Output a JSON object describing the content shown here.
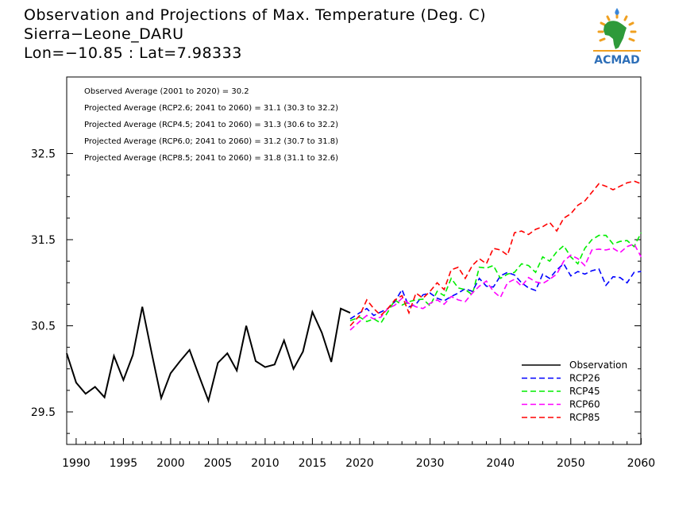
{
  "header": {
    "title": "Observation and Projections of Max. Temperature (Deg. C)",
    "station": "Sierra−Leone_DARU",
    "coords": "Lon=−10.85 : Lat=7.98333"
  },
  "logo": {
    "text": "ACMAD",
    "icon": "africa-map-sun-icon"
  },
  "chart_data": {
    "type": "line",
    "xlim": [
      1989,
      2060
    ],
    "ylim": [
      29.1,
      32.2
    ],
    "x_ticks": [
      1990,
      1995,
      2000,
      2005,
      2010,
      2015,
      2020,
      2030,
      2040,
      2050,
      2060
    ],
    "y_ticks": [
      29.5,
      30.5,
      31.5,
      32.5
    ],
    "y_tick_labels": [
      "29.5",
      "30.5",
      "31.5",
      "32.5"
    ],
    "grid": false,
    "legend_position": "bottom-right",
    "annotations": [
      "Observed Average (2001 to 2020) = 30.2",
      "Projected Average (RCP2.6; 2041 to 2060) = 31.1 (30.3 to 32.2)",
      "Projected Average (RCP4.5; 2041 to 2060) = 31.3 (30.6 to 32.2)",
      "Projected Average (RCP6.0; 2041 to 2060) = 31.2 (30.7 to 31.8)",
      "Projected Average (RCP8.5; 2041 to 2060) = 31.8 (31.1 to 32.6)"
    ],
    "series": [
      {
        "name": "Observation",
        "color": "#000000",
        "dash": "solid",
        "x": [
          1989,
          1990,
          1991,
          1992,
          1993,
          1994,
          1995,
          1996,
          1997,
          1998,
          1999,
          2000,
          2001,
          2002,
          2003,
          2004,
          2005,
          2006,
          2007,
          2008,
          2009,
          2010,
          2011,
          2012,
          2013,
          2014,
          2015,
          2016,
          2017,
          2018,
          2019
        ],
        "y": [
          30.18,
          29.84,
          29.71,
          29.79,
          29.67,
          30.15,
          29.87,
          30.16,
          30.72,
          30.18,
          29.66,
          29.95,
          30.09,
          30.22,
          29.92,
          29.63,
          30.07,
          30.18,
          29.98,
          30.5,
          30.09,
          30.02,
          30.05,
          30.33,
          30.0,
          30.2,
          30.66,
          30.42,
          30.08,
          30.7,
          30.65
        ]
      },
      {
        "name": "RCP26",
        "color": "#0000ff",
        "dash": "dashed",
        "x": [
          2019,
          2020,
          2021,
          2022,
          2023,
          2024,
          2025,
          2026,
          2027,
          2028,
          2029,
          2030,
          2031,
          2032,
          2033,
          2034,
          2035,
          2036,
          2037,
          2038,
          2039,
          2040,
          2041,
          2042,
          2043,
          2044,
          2045,
          2046,
          2047,
          2048,
          2049,
          2050,
          2051,
          2052,
          2053,
          2054,
          2055,
          2056,
          2057,
          2058,
          2059,
          2060
        ],
        "y": [
          30.58,
          30.65,
          30.7,
          30.62,
          30.66,
          30.7,
          30.78,
          30.92,
          30.72,
          30.75,
          30.86,
          30.88,
          30.82,
          30.79,
          30.84,
          30.88,
          30.93,
          30.9,
          31.05,
          30.96,
          30.95,
          31.08,
          31.12,
          31.09,
          31.0,
          30.94,
          30.91,
          31.1,
          31.05,
          31.15,
          31.22,
          31.08,
          31.13,
          31.1,
          31.14,
          31.16,
          30.97,
          31.07,
          31.06,
          31.0,
          31.12,
          31.13
        ]
      },
      {
        "name": "RCP45",
        "color": "#00ee00",
        "dash": "dashed",
        "x": [
          2019,
          2020,
          2021,
          2022,
          2023,
          2024,
          2025,
          2026,
          2027,
          2028,
          2029,
          2030,
          2031,
          2032,
          2033,
          2034,
          2035,
          2036,
          2037,
          2038,
          2039,
          2040,
          2041,
          2042,
          2043,
          2044,
          2045,
          2046,
          2047,
          2048,
          2049,
          2050,
          2051,
          2052,
          2053,
          2054,
          2055,
          2056,
          2057,
          2058,
          2059,
          2060
        ],
        "y": [
          30.56,
          30.6,
          30.55,
          30.58,
          30.53,
          30.66,
          30.8,
          30.74,
          30.78,
          30.8,
          30.81,
          30.73,
          30.9,
          30.85,
          31.05,
          30.94,
          30.92,
          30.86,
          31.18,
          31.17,
          31.2,
          31.05,
          31.1,
          31.12,
          31.22,
          31.2,
          31.12,
          31.3,
          31.25,
          31.36,
          31.43,
          31.3,
          31.22,
          31.4,
          31.5,
          31.55,
          31.55,
          31.45,
          31.48,
          31.49,
          31.42,
          31.58
        ]
      },
      {
        "name": "RCP60",
        "color": "#ff00ff",
        "dash": "dashed",
        "x": [
          2019,
          2020,
          2021,
          2022,
          2023,
          2024,
          2025,
          2026,
          2027,
          2028,
          2029,
          2030,
          2031,
          2032,
          2033,
          2034,
          2035,
          2036,
          2037,
          2038,
          2039,
          2040,
          2041,
          2042,
          2043,
          2044,
          2045,
          2046,
          2047,
          2048,
          2049,
          2050,
          2051,
          2052,
          2053,
          2054,
          2055,
          2056,
          2057,
          2058,
          2059,
          2060
        ],
        "y": [
          30.45,
          30.55,
          30.62,
          30.58,
          30.6,
          30.7,
          30.74,
          30.82,
          30.76,
          30.72,
          30.7,
          30.76,
          30.8,
          30.75,
          30.84,
          30.8,
          30.78,
          30.88,
          30.96,
          31.02,
          30.9,
          30.83,
          31.0,
          31.04,
          30.96,
          31.06,
          31.01,
          30.99,
          31.04,
          31.1,
          31.25,
          31.32,
          31.28,
          31.2,
          31.38,
          31.39,
          31.38,
          31.4,
          31.35,
          31.42,
          31.45,
          31.3
        ]
      },
      {
        "name": "RCP85",
        "color": "#ff0000",
        "dash": "dashed",
        "x": [
          2019,
          2020,
          2021,
          2022,
          2023,
          2024,
          2025,
          2026,
          2027,
          2028,
          2029,
          2030,
          2031,
          2032,
          2033,
          2034,
          2035,
          2036,
          2037,
          2038,
          2039,
          2040,
          2041,
          2042,
          2043,
          2044,
          2045,
          2046,
          2047,
          2048,
          2049,
          2050,
          2051,
          2052,
          2053,
          2054,
          2055,
          2056,
          2057,
          2058,
          2059,
          2060
        ],
        "y": [
          30.5,
          30.62,
          30.8,
          30.7,
          30.62,
          30.7,
          30.8,
          30.85,
          30.65,
          30.88,
          30.82,
          30.9,
          31.0,
          30.92,
          31.15,
          31.18,
          31.05,
          31.2,
          31.28,
          31.22,
          31.4,
          31.38,
          31.32,
          31.58,
          31.6,
          31.56,
          31.62,
          31.65,
          31.7,
          31.6,
          31.75,
          31.8,
          31.9,
          31.95,
          32.05,
          32.15,
          32.12,
          32.08,
          32.12,
          32.16,
          32.18,
          32.15
        ]
      }
    ]
  }
}
